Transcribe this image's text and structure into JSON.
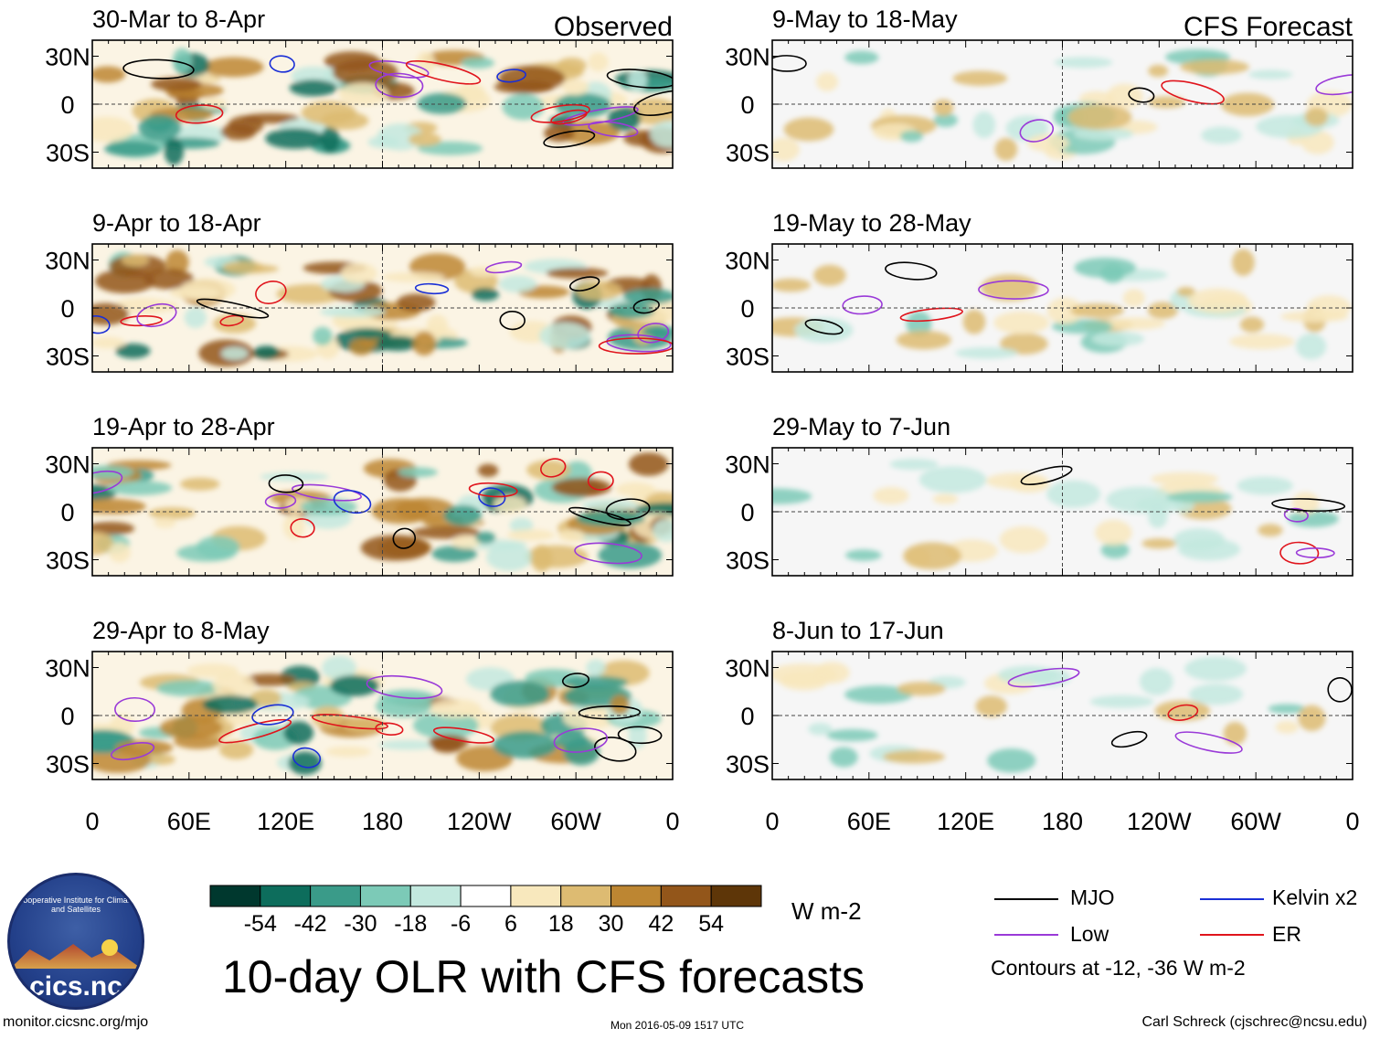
{
  "header": {
    "left_panel_label": "Observed",
    "right_panel_label": "CFS Forecast"
  },
  "chart_data": {
    "type": "heatmap",
    "title": "10-day OLR with CFS forecasts",
    "colorbar": {
      "units": "W m-2",
      "tick_labels": [
        "-54",
        "-42",
        "-30",
        "-18",
        "-6",
        "6",
        "18",
        "30",
        "42",
        "54"
      ],
      "colors": [
        "#00382e",
        "#0d6d5c",
        "#3a9b89",
        "#7ccab7",
        "#c3e9df",
        "#ffffff",
        "#f8e8bd",
        "#ddbb72",
        "#bd8632",
        "#93561a",
        "#5e3608"
      ]
    },
    "x_tick_labels": [
      "0",
      "60E",
      "120E",
      "180",
      "120W",
      "60W",
      "0"
    ],
    "x_range_deg": [
      0,
      360
    ],
    "y_tick_labels": [
      "30N",
      "0",
      "30S"
    ],
    "y_range_deg": [
      -40,
      40
    ],
    "panels": [
      {
        "id": "obs-1",
        "label": "30-Mar to 8-Apr",
        "column": "Observed"
      },
      {
        "id": "obs-2",
        "label": "9-Apr to 18-Apr",
        "column": "Observed"
      },
      {
        "id": "obs-3",
        "label": "19-Apr to 28-Apr",
        "column": "Observed"
      },
      {
        "id": "obs-4",
        "label": "29-Apr to 8-May",
        "column": "Observed"
      },
      {
        "id": "fc-1",
        "label": "9-May to 18-May",
        "column": "CFS Forecast"
      },
      {
        "id": "fc-2",
        "label": "19-May to 28-May",
        "column": "CFS Forecast"
      },
      {
        "id": "fc-3",
        "label": "29-May to 7-Jun",
        "column": "CFS Forecast"
      },
      {
        "id": "fc-4",
        "label": "8-Jun to 17-Jun",
        "column": "CFS Forecast"
      }
    ]
  },
  "legend": {
    "items": [
      {
        "label": "MJO",
        "color": "#000000"
      },
      {
        "label": "Kelvin x2",
        "color": "#1a2fd6"
      },
      {
        "label": "Low",
        "color": "#9a3ad8"
      },
      {
        "label": "ER",
        "color": "#e0141c"
      }
    ],
    "contours_note": "Contours at -12, -36 W m-2"
  },
  "logo": {
    "text": "cics.nc",
    "ring_text": "Cooperative Institute for Climate and Satellites"
  },
  "footer": {
    "url": "monitor.cicsnc.org/mjo",
    "timestamp": "Mon 2016-05-09 1517 UTC",
    "credit": "Carl Schreck (cjschrec@ncsu.edu)"
  }
}
